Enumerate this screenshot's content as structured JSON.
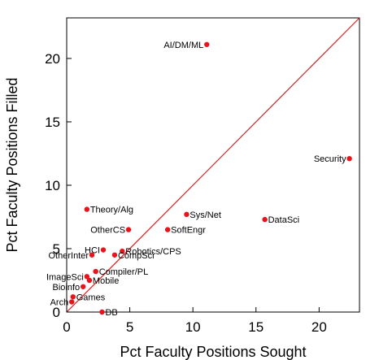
{
  "chart_data": {
    "type": "scatter",
    "title": "",
    "xlabel": "Pct Faculty Positions Sought",
    "ylabel": "Pct Faculty Positions Filled",
    "xlim": [
      0,
      23.2
    ],
    "ylim": [
      0,
      23.2
    ],
    "xticks": [
      0,
      5,
      10,
      15,
      20
    ],
    "yticks": [
      0,
      5,
      10,
      15,
      20
    ],
    "grid": false,
    "reference_line": "y = x",
    "point_color": "#e8141c",
    "line_color": "#d81e1e",
    "points": [
      {
        "label": "AI/DM/ML",
        "x": 11.1,
        "y": 21.1,
        "anchor": "end"
      },
      {
        "label": "Security",
        "x": 22.4,
        "y": 12.1,
        "anchor": "end"
      },
      {
        "label": "Theory/Alg",
        "x": 1.6,
        "y": 8.1,
        "anchor": "start"
      },
      {
        "label": "Sys/Net",
        "x": 9.5,
        "y": 7.7,
        "anchor": "start"
      },
      {
        "label": "DataSci",
        "x": 15.7,
        "y": 7.3,
        "anchor": "start"
      },
      {
        "label": "OtherCS",
        "x": 4.9,
        "y": 6.5,
        "anchor": "end"
      },
      {
        "label": "SoftEngr",
        "x": 8.0,
        "y": 6.5,
        "anchor": "start"
      },
      {
        "label": "HCI",
        "x": 2.9,
        "y": 4.9,
        "anchor": "end"
      },
      {
        "label": "Robotics/CPS",
        "x": 4.4,
        "y": 4.8,
        "anchor": "start"
      },
      {
        "label": "OtherInter",
        "x": 2.0,
        "y": 4.5,
        "anchor": "end"
      },
      {
        "label": "CompSci",
        "x": 3.8,
        "y": 4.5,
        "anchor": "start"
      },
      {
        "label": "Compiler/PL",
        "x": 2.3,
        "y": 3.2,
        "anchor": "start"
      },
      {
        "label": "ImageSci",
        "x": 1.6,
        "y": 2.8,
        "anchor": "end"
      },
      {
        "label": "Mobile",
        "x": 1.8,
        "y": 2.5,
        "anchor": "start"
      },
      {
        "label": "Bioinfo",
        "x": 1.3,
        "y": 2.0,
        "anchor": "end"
      },
      {
        "label": "Games",
        "x": 0.5,
        "y": 1.2,
        "anchor": "start"
      },
      {
        "label": "Arch",
        "x": 0.4,
        "y": 0.8,
        "anchor": "end"
      },
      {
        "label": "DB",
        "x": 2.8,
        "y": 0.0,
        "anchor": "start"
      }
    ]
  }
}
